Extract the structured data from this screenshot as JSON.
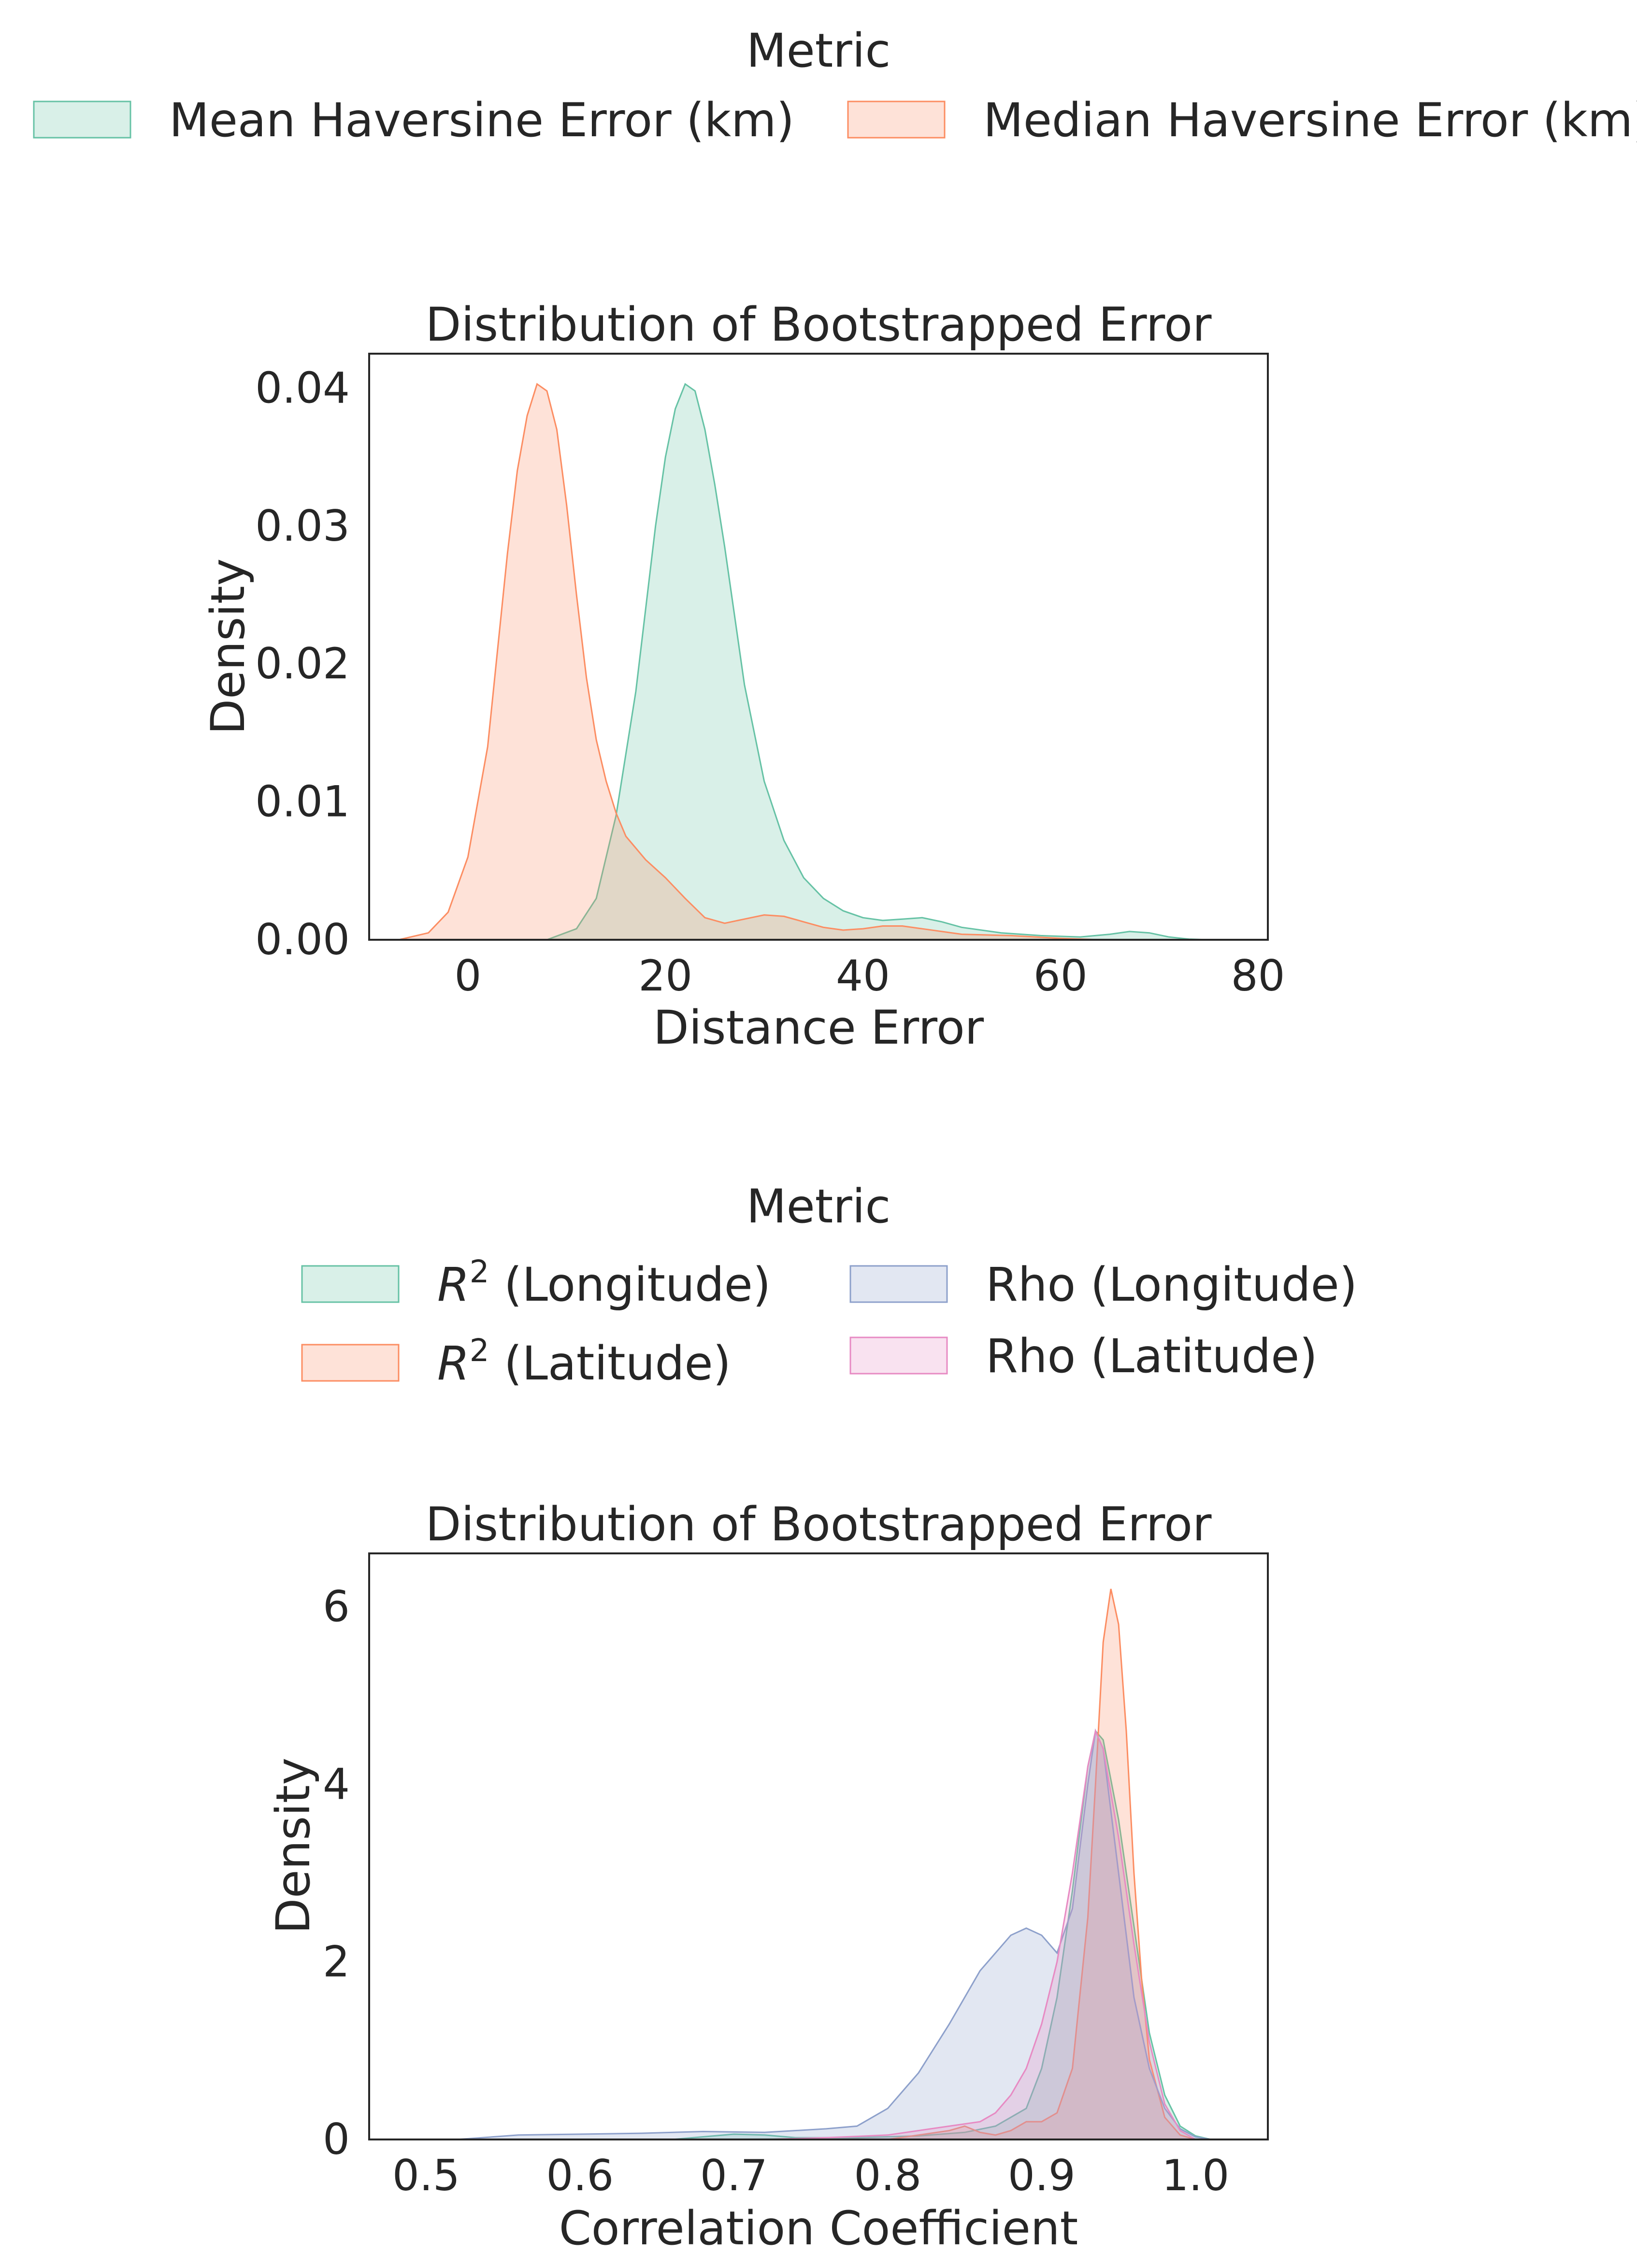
{
  "colors": {
    "green": "#66c2a5",
    "orange": "#fc8d62",
    "blue": "#8da0cb",
    "pink": "#e78ac3"
  },
  "chart_data": [
    {
      "type": "area",
      "title": "Distribution of Bootstrapped Error",
      "xlabel": "Distance Error",
      "ylabel": "Density",
      "xlim": [
        -10,
        81
      ],
      "ylim": [
        0,
        0.0425
      ],
      "xticks": [
        0,
        20,
        40,
        60,
        80
      ],
      "yticks": [
        0.0,
        0.01,
        0.02,
        0.03,
        0.04
      ],
      "ytick_labels": [
        "0.00",
        "0.01",
        "0.02",
        "0.03",
        "0.04"
      ],
      "xtick_labels": [
        "0",
        "20",
        "40",
        "60",
        "80"
      ],
      "grid": false,
      "legend": {
        "title": "Metric",
        "placement": "top-outside",
        "columns": 2,
        "entries": [
          "Mean Haversine Error (km)",
          "Median Haversine Error (km)"
        ]
      },
      "series": [
        {
          "name": "Mean Haversine Error (km)",
          "color": "#66c2a5",
          "x": [
            8,
            11,
            13,
            15,
            17,
            18,
            19,
            20,
            21,
            22,
            23,
            24,
            25,
            26,
            27,
            28,
            30,
            32,
            34,
            36,
            38,
            40,
            42,
            44,
            46,
            48,
            50,
            54,
            58,
            62,
            65,
            67,
            69,
            71,
            73,
            75
          ],
          "y": [
            0.0,
            0.0008,
            0.003,
            0.009,
            0.018,
            0.024,
            0.03,
            0.035,
            0.0385,
            0.0403,
            0.0398,
            0.037,
            0.033,
            0.0285,
            0.0235,
            0.0185,
            0.0115,
            0.0072,
            0.0045,
            0.003,
            0.0021,
            0.0016,
            0.0014,
            0.0015,
            0.0016,
            0.0013,
            0.0009,
            0.0005,
            0.0003,
            0.0002,
            0.0004,
            0.0006,
            0.0005,
            0.0002,
            5e-05,
            0.0
          ]
        },
        {
          "name": "Median Haversine Error (km)",
          "color": "#fc8d62",
          "x": [
            -7,
            -4,
            -2,
            0,
            2,
            3,
            4,
            5,
            6,
            7,
            8,
            9,
            10,
            11,
            12,
            13,
            14,
            15,
            16,
            18,
            20,
            22,
            24,
            26,
            28,
            30,
            32,
            34,
            36,
            38,
            40,
            42,
            44,
            46,
            50,
            55,
            60,
            64
          ],
          "y": [
            0.0,
            0.0005,
            0.002,
            0.006,
            0.014,
            0.021,
            0.028,
            0.034,
            0.038,
            0.0403,
            0.0398,
            0.037,
            0.0315,
            0.025,
            0.019,
            0.0145,
            0.0115,
            0.0092,
            0.0075,
            0.0058,
            0.0045,
            0.003,
            0.0016,
            0.0012,
            0.0015,
            0.0018,
            0.0017,
            0.0013,
            0.0009,
            0.0007,
            0.0008,
            0.001,
            0.001,
            0.0008,
            0.0004,
            0.0003,
            0.0001,
            0.0
          ]
        }
      ]
    },
    {
      "type": "area",
      "title": "Distribution of Bootstrapped Error",
      "xlabel": "Correlation Coefficient",
      "ylabel": "Density",
      "xlim": [
        0.463,
        1.047
      ],
      "ylim": [
        0,
        6.6
      ],
      "xticks": [
        0.5,
        0.6,
        0.7,
        0.8,
        0.9,
        1.0
      ],
      "xtick_labels": [
        "0.5",
        "0.6",
        "0.7",
        "0.8",
        "0.9",
        "1.0"
      ],
      "yticks": [
        0,
        2,
        4,
        6
      ],
      "ytick_labels": [
        "0",
        "2",
        "4",
        "6"
      ],
      "grid": false,
      "legend": {
        "title": "Metric",
        "placement": "top-outside",
        "columns": 2,
        "entries": [
          "(Longitude)",
          "(Latitude)",
          "Rho (Longitude)",
          "Rho (Latitude)"
        ]
      },
      "series": [
        {
          "name": "(Longitude)",
          "color": "#66c2a5",
          "x": [
            0.66,
            0.68,
            0.7,
            0.72,
            0.74,
            0.78,
            0.82,
            0.85,
            0.87,
            0.89,
            0.9,
            0.91,
            0.92,
            0.93,
            0.935,
            0.94,
            0.95,
            0.96,
            0.97,
            0.98,
            0.99,
            1.0,
            1.01
          ],
          "y": [
            0.0,
            0.03,
            0.06,
            0.05,
            0.02,
            0.02,
            0.04,
            0.08,
            0.15,
            0.35,
            0.8,
            1.6,
            2.8,
            4.2,
            4.6,
            4.5,
            3.6,
            2.4,
            1.2,
            0.5,
            0.15,
            0.04,
            0.0
          ]
        },
        {
          "name": "(Latitude)",
          "color": "#fc8d62",
          "x": [
            0.8,
            0.82,
            0.84,
            0.85,
            0.86,
            0.87,
            0.88,
            0.89,
            0.9,
            0.91,
            0.92,
            0.93,
            0.935,
            0.94,
            0.945,
            0.95,
            0.955,
            0.96,
            0.965,
            0.97,
            0.98,
            0.99,
            1.0
          ],
          "y": [
            0.0,
            0.05,
            0.1,
            0.15,
            0.08,
            0.05,
            0.1,
            0.2,
            0.2,
            0.3,
            0.8,
            2.5,
            4.0,
            5.6,
            6.2,
            5.8,
            4.6,
            3.0,
            1.8,
            0.9,
            0.25,
            0.05,
            0.0
          ]
        },
        {
          "name": "Rho (Longitude)",
          "color": "#8da0cb",
          "x": [
            0.52,
            0.56,
            0.6,
            0.64,
            0.68,
            0.72,
            0.76,
            0.78,
            0.8,
            0.82,
            0.84,
            0.86,
            0.88,
            0.89,
            0.9,
            0.91,
            0.92,
            0.93,
            0.935,
            0.94,
            0.95,
            0.96,
            0.97,
            0.98,
            0.99,
            1.0,
            1.01
          ],
          "y": [
            0.0,
            0.05,
            0.06,
            0.07,
            0.09,
            0.08,
            0.12,
            0.15,
            0.35,
            0.75,
            1.3,
            1.9,
            2.3,
            2.38,
            2.3,
            2.1,
            2.6,
            4.0,
            4.6,
            4.4,
            3.0,
            1.6,
            0.8,
            0.35,
            0.12,
            0.03,
            0.0
          ]
        },
        {
          "name": "Rho (Latitude)",
          "color": "#e78ac3",
          "x": [
            0.72,
            0.76,
            0.8,
            0.82,
            0.84,
            0.86,
            0.87,
            0.88,
            0.89,
            0.9,
            0.91,
            0.92,
            0.93,
            0.935,
            0.94,
            0.95,
            0.96,
            0.97,
            0.98,
            0.99,
            1.0
          ],
          "y": [
            0.0,
            0.02,
            0.05,
            0.1,
            0.15,
            0.2,
            0.3,
            0.5,
            0.8,
            1.3,
            2.0,
            3.0,
            4.2,
            4.6,
            4.4,
            3.4,
            2.2,
            1.1,
            0.4,
            0.1,
            0.0
          ]
        }
      ]
    }
  ]
}
